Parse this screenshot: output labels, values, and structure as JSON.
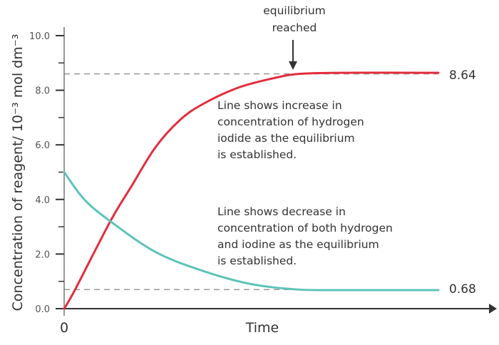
{
  "chart_data": {
    "type": "line",
    "title": "",
    "xlabel": "Time",
    "ylabel": "Concentration of reagent/ 10⁻³ mol dm⁻³",
    "xlim": [
      0,
      10
    ],
    "ylim": [
      0,
      10
    ],
    "x_tick_labels": [
      "0"
    ],
    "y_ticks": [
      0,
      2,
      4,
      6,
      8,
      10
    ],
    "y_tick_labels": [
      "0.0",
      "2.0",
      "4.0",
      "6.0",
      "8.0",
      "10.0"
    ],
    "y_minor_ticks": [
      1,
      3,
      5,
      7,
      9
    ],
    "grid": false,
    "series": [
      {
        "name": "hydrogen iodide",
        "color": "#e32d3c",
        "points": [
          [
            0,
            0
          ],
          [
            0.25,
            0.68
          ],
          [
            1.08,
            3.2
          ],
          [
            1.58,
            4.5
          ],
          [
            2.13,
            5.9
          ],
          [
            2.7,
            6.9
          ],
          [
            3.25,
            7.5
          ],
          [
            4.08,
            8.1
          ],
          [
            4.92,
            8.45
          ],
          [
            5.5,
            8.6
          ],
          [
            6.5,
            8.64
          ],
          [
            8.75,
            8.64
          ]
        ],
        "end_label": "8.64"
      },
      {
        "name": "hydrogen and iodine",
        "color": "#5cc4b8",
        "points": [
          [
            0,
            5.0
          ],
          [
            0.47,
            4.0
          ],
          [
            1.08,
            3.2
          ],
          [
            2.13,
            2.08
          ],
          [
            3.25,
            1.38
          ],
          [
            4.37,
            0.9
          ],
          [
            5.47,
            0.7
          ],
          [
            6.5,
            0.68
          ],
          [
            8.75,
            0.68
          ]
        ],
        "end_label": "0.68"
      }
    ],
    "reference_lines": [
      8.6,
      0.7
    ],
    "annotations": {
      "equilibrium": {
        "lines": [
          "equilibrium",
          "reached"
        ],
        "at_time": 5.35
      },
      "increase": [
        "Line shows increase in",
        "concentration of hydrogen",
        "iodide as the equilibrium",
        "is established."
      ],
      "decrease": [
        "Line shows decrease in",
        "concentration of both hydrogen",
        "and iodine as the equilibrium",
        "is established."
      ]
    }
  }
}
